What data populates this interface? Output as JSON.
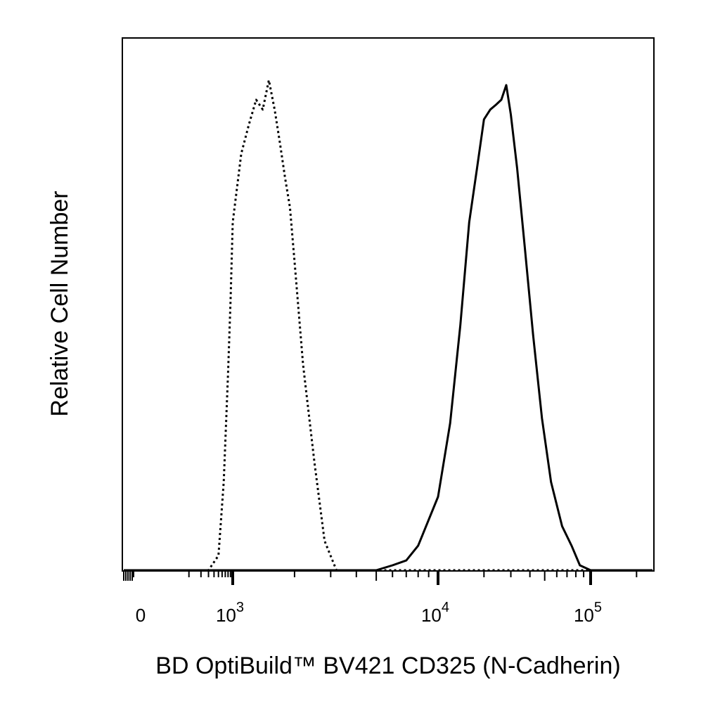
{
  "chart_data": {
    "type": "line",
    "title": "",
    "xlabel": "BD OptiBuild™ BV421 CD325 (N-Cadherin)",
    "ylabel": "Relative Cell Number",
    "xscale": "biexponential",
    "xlim": [
      -200,
      200000
    ],
    "ylim": [
      0,
      1
    ],
    "grid": false,
    "legend": "none",
    "x_ticks": [
      {
        "value": 0,
        "base": "0",
        "exp": ""
      },
      {
        "value": 1000,
        "base": "10",
        "exp": "3"
      },
      {
        "value": 10000,
        "base": "10",
        "exp": "4"
      },
      {
        "value": 100000,
        "base": "10",
        "exp": "5"
      }
    ],
    "series": [
      {
        "style": "dotted",
        "color": "#000000",
        "x": [
          300,
          500,
          650,
          800,
          900,
          1000,
          1100,
          1200,
          1300,
          1400,
          1500,
          1600,
          1700,
          1800,
          1900,
          2000,
          2200,
          2500,
          2800,
          3200
        ],
        "y": [
          0.0,
          0.03,
          0.18,
          0.4,
          0.55,
          0.71,
          0.85,
          0.91,
          0.96,
          0.94,
          1.0,
          0.94,
          0.87,
          0.8,
          0.74,
          0.63,
          0.42,
          0.22,
          0.06,
          0.0
        ]
      },
      {
        "style": "solid",
        "color": "#000000",
        "x": [
          5000,
          6000,
          7000,
          8000,
          10000,
          12000,
          14000,
          16000,
          18000,
          20000,
          22000,
          24000,
          26000,
          28000,
          30000,
          33000,
          37000,
          42000,
          48000,
          55000,
          65000,
          75000,
          85000,
          100000
        ],
        "y": [
          0.0,
          0.01,
          0.02,
          0.05,
          0.15,
          0.3,
          0.5,
          0.71,
          0.82,
          0.92,
          0.94,
          0.95,
          0.96,
          0.99,
          0.93,
          0.82,
          0.66,
          0.48,
          0.31,
          0.18,
          0.09,
          0.05,
          0.01,
          0.0
        ]
      }
    ]
  }
}
